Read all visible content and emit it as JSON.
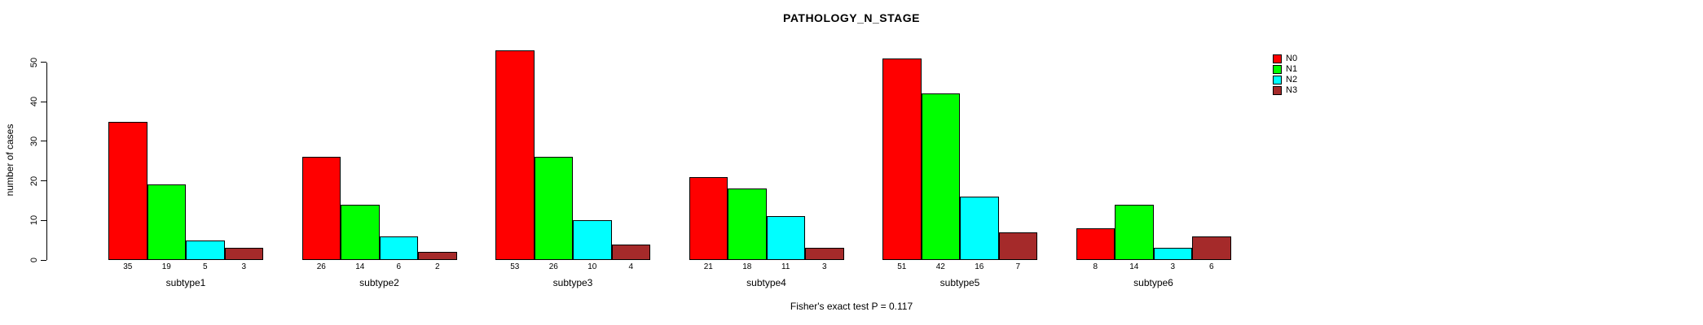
{
  "title": "PATHOLOGY_N_STAGE",
  "footer": "Fisher's exact test P = 0.117",
  "chart_data": {
    "type": "bar",
    "grouped": true,
    "title": "PATHOLOGY_N_STAGE",
    "xlabel": "",
    "ylabel": "number of cases",
    "categories": [
      "subtype1",
      "subtype2",
      "subtype3",
      "subtype4",
      "subtype5",
      "subtype6"
    ],
    "series": [
      {
        "name": "N0",
        "color": "#FF0000",
        "values": [
          35,
          26,
          53,
          21,
          51,
          8
        ]
      },
      {
        "name": "N1",
        "color": "#00FF00",
        "values": [
          19,
          14,
          26,
          18,
          42,
          14
        ]
      },
      {
        "name": "N2",
        "color": "#00FFFF",
        "values": [
          5,
          6,
          10,
          11,
          16,
          3
        ]
      },
      {
        "name": "N3",
        "color": "#A52A2A",
        "values": [
          3,
          2,
          4,
          3,
          7,
          6
        ]
      }
    ],
    "yticks": [
      0,
      10,
      20,
      30,
      40,
      50
    ],
    "ylim": [
      0,
      53
    ],
    "bar_value_labels": true,
    "legend_position": "top-right",
    "grid": false,
    "annotation": "Fisher's exact test P = 0.117"
  }
}
